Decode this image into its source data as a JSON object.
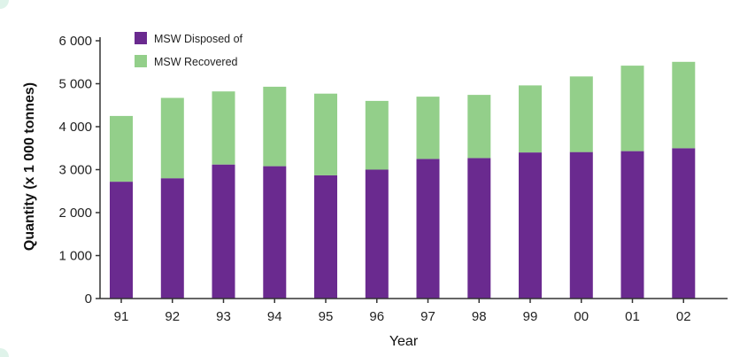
{
  "chart_data": {
    "type": "bar",
    "stacked": true,
    "categories": [
      "91",
      "92",
      "93",
      "94",
      "95",
      "96",
      "97",
      "98",
      "99",
      "00",
      "01",
      "02"
    ],
    "series": [
      {
        "name": "MSW Disposed of",
        "color": "#6a2a8f",
        "values": [
          2720,
          2800,
          3120,
          3080,
          2870,
          3000,
          3250,
          3270,
          3400,
          3410,
          3430,
          3500
        ]
      },
      {
        "name": "MSW Recovered",
        "color": "#93cf8a",
        "values": [
          1530,
          1870,
          1700,
          1850,
          1900,
          1600,
          1450,
          1470,
          1560,
          1760,
          1990,
          2010
        ]
      }
    ],
    "xlabel": "Year",
    "ylabel": "Quantity (x 1 000 tonnes)",
    "ylim": [
      0,
      6000
    ],
    "yticks": [
      "0",
      "1 000",
      "2 000",
      "3 000",
      "4 000",
      "5 000",
      "6 000"
    ],
    "grid": false,
    "legend_position": "top-left"
  },
  "colors": {
    "axis": "#333333",
    "frame_corners": "#cdeee0"
  }
}
